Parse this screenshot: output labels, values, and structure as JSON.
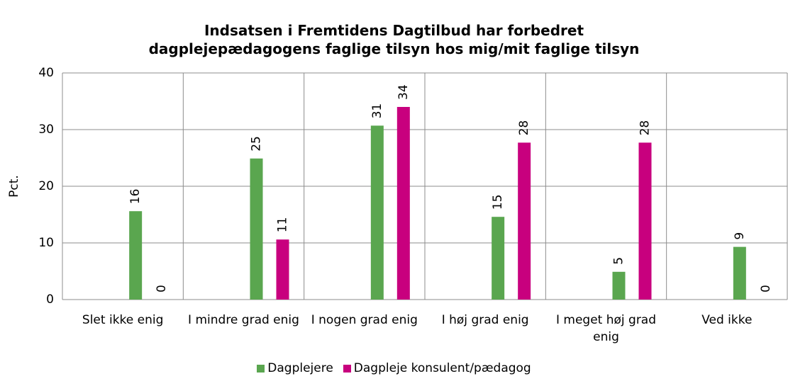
{
  "chart_data": {
    "type": "bar",
    "title": "Indsatsen i Fremtidens Dagtilbud har forbedret\ndagplejepædagogens faglige tilsyn hos mig/mit faglige tilsyn",
    "y_label": "Pct.",
    "categories": [
      "Slet ikke enig",
      "I mindre grad enig",
      "I nogen grad enig",
      "I høj grad enig",
      "I meget høj grad enig",
      "Ved ikke"
    ],
    "series": [
      {
        "name": "Dagplejere",
        "color": "#5aa64f",
        "values": [
          15.6,
          24.9,
          30.7,
          14.6,
          4.9,
          9.3
        ],
        "value_labels": [
          "16",
          "25",
          "31",
          "15",
          "5",
          "9"
        ]
      },
      {
        "name": "Dagpleje konsulent/pædagog",
        "color": "#c8007e",
        "values": [
          0,
          10.6,
          34,
          27.7,
          27.7,
          0
        ],
        "value_labels": [
          "0",
          "11",
          "34",
          "28",
          "28",
          "0"
        ]
      }
    ],
    "ylim": [
      0,
      40
    ],
    "yticks": [
      0,
      10,
      20,
      30,
      40
    ],
    "grid": true,
    "legend": "bottom"
  }
}
